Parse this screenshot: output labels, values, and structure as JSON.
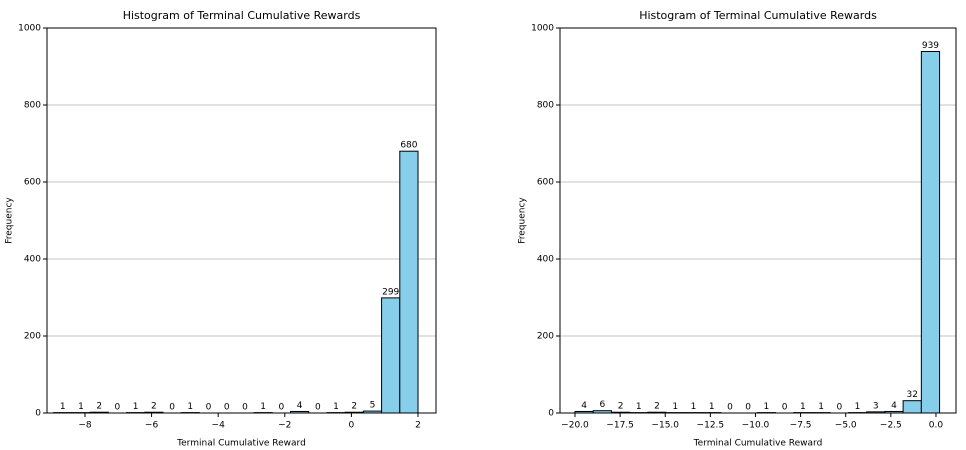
{
  "chart_data": [
    {
      "type": "histogram",
      "title": "Histogram of Terminal Cumulative Rewards",
      "xlabel": "Terminal Cumulative Reward",
      "ylabel": "Frequency",
      "bins": [
        -8.94,
        -8.393,
        -7.846,
        -7.299,
        -6.752,
        -6.205,
        -5.658,
        -5.111,
        -4.564,
        -4.017,
        -3.47,
        -2.923,
        -2.376,
        -1.829,
        -1.282,
        -0.735,
        -0.188,
        0.359,
        0.906,
        1.453,
        2.0
      ],
      "counts": [
        1,
        1,
        2,
        0,
        1,
        2,
        0,
        1,
        0,
        0,
        0,
        1,
        0,
        4,
        0,
        1,
        2,
        5,
        299,
        680
      ],
      "color": "#87ceeb",
      "edgecolor": "#000000",
      "xlim": [
        -9.14,
        2.54
      ],
      "xticks": [
        {
          "value": -8,
          "label": "−8"
        },
        {
          "value": -6,
          "label": "−6"
        },
        {
          "value": -4,
          "label": "−4"
        },
        {
          "value": -2,
          "label": "−2"
        },
        0,
        2
      ],
      "ylim": [
        0,
        1000
      ],
      "yticks": [
        0,
        200,
        400,
        600,
        800,
        1000
      ],
      "grid": "y"
    },
    {
      "type": "histogram",
      "title": "Histogram of Terminal Cumulative Rewards",
      "xlabel": "Terminal Cumulative Reward",
      "ylabel": "Frequency",
      "bins": [
        -20,
        -18.99,
        -17.98,
        -16.97,
        -15.96,
        -14.95,
        -13.94,
        -12.93,
        -11.92,
        -10.91,
        -9.9,
        -8.89,
        -7.88,
        -6.87,
        -5.86,
        -4.85,
        -3.84,
        -2.83,
        -1.82,
        -0.81,
        0.2
      ],
      "counts": [
        4,
        6,
        2,
        1,
        2,
        1,
        1,
        1,
        0,
        0,
        1,
        0,
        1,
        1,
        0,
        1,
        3,
        4,
        32,
        939
      ],
      "color": "#87ceeb",
      "edgecolor": "#000000",
      "xlim": [
        -20.83,
        1.11
      ],
      "xticks": [
        {
          "value": -20,
          "label": "−20.0"
        },
        {
          "value": -17.5,
          "label": "−17.5"
        },
        {
          "value": -15,
          "label": "−15.0"
        },
        {
          "value": -12.5,
          "label": "−12.5"
        },
        {
          "value": -10,
          "label": "−10.0"
        },
        {
          "value": -7.5,
          "label": "−7.5"
        },
        {
          "value": -5,
          "label": "−5.0"
        },
        {
          "value": -2.5,
          "label": "−2.5"
        },
        {
          "value": 0,
          "label": "0.0"
        }
      ],
      "ylim": [
        0,
        1000
      ],
      "yticks": [
        0,
        200,
        400,
        600,
        800,
        1000
      ],
      "grid": "y"
    }
  ]
}
